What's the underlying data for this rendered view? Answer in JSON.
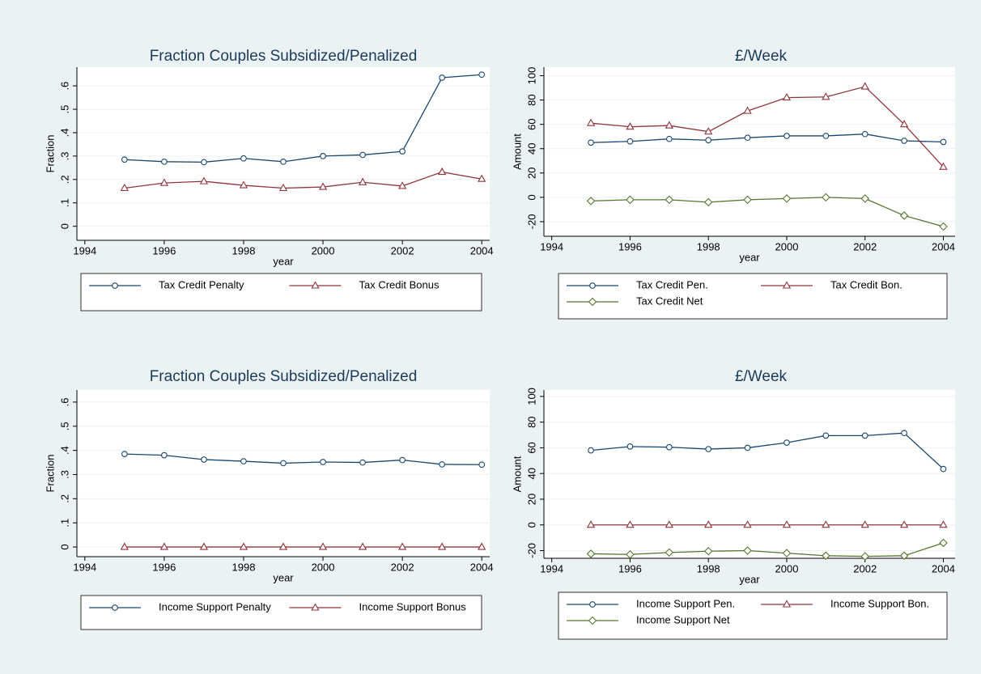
{
  "chart_data": [
    {
      "type": "line",
      "title": "Fraction Couples Subsidized/Penalized",
      "xlabel": "year",
      "ylabel": "Fraction",
      "x": [
        1995,
        1996,
        1997,
        1998,
        1999,
        2000,
        2001,
        2002,
        2003,
        2004
      ],
      "series": [
        {
          "name": "Tax Credit Penalty",
          "color": "#1a476f",
          "marker": "circle",
          "values": [
            0.285,
            0.276,
            0.274,
            0.29,
            0.276,
            0.3,
            0.305,
            0.32,
            0.635,
            0.648
          ]
        },
        {
          "name": "Tax Credit Bonus",
          "color": "#90353b",
          "marker": "triangle",
          "values": [
            0.163,
            0.185,
            0.192,
            0.175,
            0.163,
            0.168,
            0.188,
            0.172,
            0.232,
            0.202
          ]
        }
      ],
      "xlim": [
        1993.8,
        2004.2
      ],
      "xticks": [
        1994,
        1996,
        1998,
        2000,
        2002,
        2004
      ],
      "ylim": [
        -0.06,
        0.68
      ],
      "yticks": [
        0,
        {
          "value": 0.1,
          "label": ".1"
        },
        {
          "value": 0.2,
          "label": ".2"
        },
        {
          "value": 0.3,
          "label": ".3"
        },
        {
          "value": 0.4,
          "label": ".4"
        },
        {
          "value": 0.5,
          "label": ".5"
        },
        {
          "value": 0.6,
          "label": ".6"
        }
      ],
      "grid": true,
      "legend": "bottom"
    },
    {
      "type": "line",
      "title": "£/Week",
      "xlabel": "year",
      "ylabel": "Amount",
      "x": [
        1995,
        1996,
        1997,
        1998,
        1999,
        2000,
        2001,
        2002,
        2003,
        2004
      ],
      "series": [
        {
          "name": "Tax Credit Pen.",
          "color": "#1a476f",
          "marker": "circle",
          "values": [
            45,
            46,
            48,
            47,
            49,
            50.5,
            50.5,
            52,
            46.5,
            45.5
          ]
        },
        {
          "name": "Tax Credit Bon.",
          "color": "#90353b",
          "marker": "triangle",
          "values": [
            61,
            58,
            59,
            54,
            71,
            82,
            82.5,
            91,
            60,
            25
          ]
        },
        {
          "name": "Tax Credit Net",
          "color": "#55752f",
          "marker": "diamond",
          "values": [
            -3,
            -2,
            -2,
            -4,
            -2,
            -1,
            0,
            -1,
            -15,
            -24
          ]
        }
      ],
      "xlim": [
        1993.8,
        2004.3
      ],
      "xticks": [
        1994,
        1996,
        1998,
        2000,
        2002,
        2004
      ],
      "ylim": [
        -32,
        107
      ],
      "yticks": [
        -20,
        0,
        20,
        40,
        60,
        80,
        100
      ],
      "grid": true,
      "legend": "bottom"
    },
    {
      "type": "line",
      "title": "Fraction Couples Subsidized/Penalized",
      "xlabel": "year",
      "ylabel": "Fraction",
      "x": [
        1995,
        1996,
        1997,
        1998,
        1999,
        2000,
        2001,
        2002,
        2003,
        2004
      ],
      "series": [
        {
          "name": "Income Support Penalty",
          "color": "#1a476f",
          "marker": "circle",
          "values": [
            0.385,
            0.38,
            0.362,
            0.355,
            0.347,
            0.352,
            0.35,
            0.36,
            0.342,
            0.341
          ]
        },
        {
          "name": "Income Support Bonus",
          "color": "#90353b",
          "marker": "triangle",
          "values": [
            0,
            0,
            0,
            0,
            0,
            0,
            0,
            0,
            0,
            0
          ]
        }
      ],
      "xlim": [
        1993.8,
        2004.2
      ],
      "xticks": [
        1994,
        1996,
        1998,
        2000,
        2002,
        2004
      ],
      "ylim": [
        -0.04,
        0.65
      ],
      "yticks": [
        0,
        {
          "value": 0.1,
          "label": ".1"
        },
        {
          "value": 0.2,
          "label": ".2"
        },
        {
          "value": 0.3,
          "label": ".3"
        },
        {
          "value": 0.4,
          "label": ".4"
        },
        {
          "value": 0.5,
          "label": ".5"
        },
        {
          "value": 0.6,
          "label": ".6"
        }
      ],
      "grid": true,
      "legend": "bottom"
    },
    {
      "type": "line",
      "title": "£/Week",
      "xlabel": "year",
      "ylabel": "Amount",
      "x": [
        1995,
        1996,
        1997,
        1998,
        1999,
        2000,
        2001,
        2002,
        2003,
        2004
      ],
      "series": [
        {
          "name": "Income Support Pen.",
          "color": "#1a476f",
          "marker": "circle",
          "values": [
            58,
            61,
            60.5,
            59,
            60,
            64,
            69.5,
            69.5,
            71.5,
            43.5
          ]
        },
        {
          "name": "Income Support Bon.",
          "color": "#90353b",
          "marker": "triangle",
          "values": [
            0,
            0,
            0,
            0,
            0,
            0,
            0,
            0,
            0,
            0
          ]
        },
        {
          "name": "Income Support Net",
          "color": "#55752f",
          "marker": "diamond",
          "values": [
            -22.5,
            -23,
            -21.5,
            -20.5,
            -20,
            -22,
            -24,
            -24.5,
            -24,
            -14
          ]
        }
      ],
      "xlim": [
        1993.8,
        2004.3
      ],
      "xticks": [
        1994,
        1996,
        1998,
        2000,
        2002,
        2004
      ],
      "ylim": [
        -26,
        105
      ],
      "yticks": [
        -20,
        0,
        20,
        40,
        60,
        80,
        100
      ],
      "grid": true,
      "legend": "bottom"
    }
  ]
}
